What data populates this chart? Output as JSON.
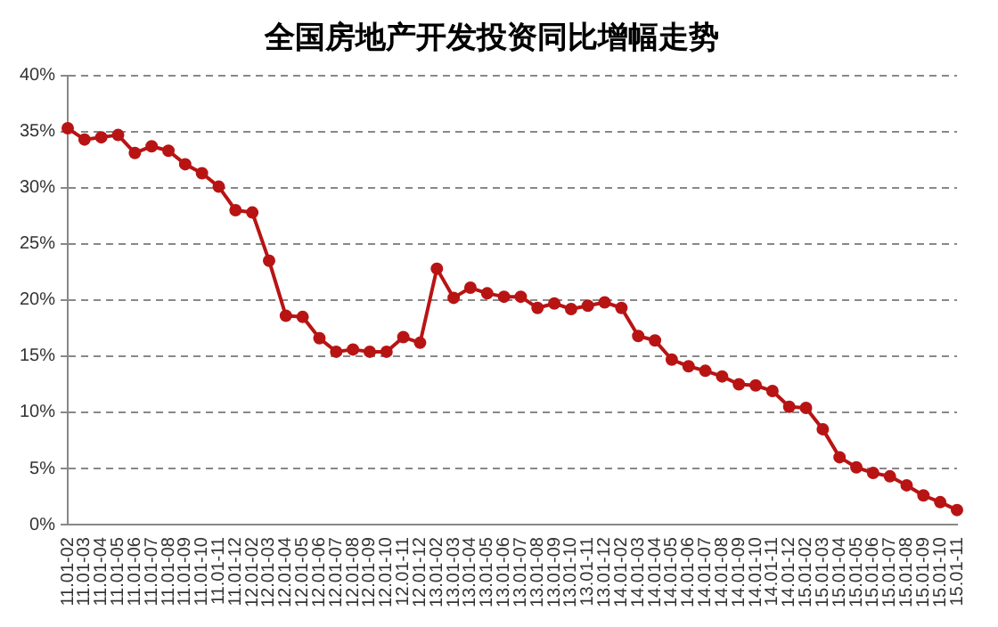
{
  "chart_data": {
    "type": "line",
    "title": "全国房地产开发投资同比增幅走势",
    "categories": [
      "11.01-02",
      "11.01-03",
      "11.01-04",
      "11.01-05",
      "11.01-06",
      "11.01-07",
      "11.01-08",
      "11.01-09",
      "11.01-10",
      "11.01-11",
      "11.01-12",
      "12.01-02",
      "12.01-03",
      "12.01-04",
      "12.01-05",
      "12.01-06",
      "12.01-07",
      "12.01-08",
      "12.01-09",
      "12.01-10",
      "12.01-11",
      "12.01-12",
      "13.01-02",
      "13.01-03",
      "13.01-04",
      "13.01-05",
      "13.01-06",
      "13.01-07",
      "13.01-08",
      "13.01-09",
      "13.01-10",
      "13.01-11",
      "13.01-12",
      "14.01-02",
      "14.01-03",
      "14.01-04",
      "14.01-05",
      "14.01-06",
      "14.01-07",
      "14.01-08",
      "14.01-09",
      "14.01-10",
      "14.01-11",
      "14.01-12",
      "15.01-02",
      "15.01-03",
      "15.01-04",
      "15.01-05",
      "15.01-06",
      "15.01-07",
      "15.01-08",
      "15.01-09",
      "15.01-10",
      "15.01-11"
    ],
    "series": [
      {
        "color": "#b81414",
        "values": [
          35.3,
          34.3,
          34.5,
          34.7,
          33.1,
          33.7,
          33.3,
          32.1,
          31.3,
          30.1,
          28.0,
          27.8,
          23.5,
          18.6,
          18.5,
          16.6,
          15.4,
          15.6,
          15.4,
          15.4,
          16.7,
          16.2,
          22.8,
          20.2,
          21.1,
          20.6,
          20.3,
          20.3,
          19.3,
          19.7,
          19.2,
          19.5,
          19.8,
          19.3,
          16.8,
          16.4,
          14.7,
          14.1,
          13.7,
          13.2,
          12.5,
          12.4,
          11.9,
          10.5,
          10.4,
          8.5,
          6.0,
          5.1,
          4.6,
          4.3,
          3.5,
          2.6,
          2.0,
          1.3
        ]
      }
    ],
    "ylim": [
      0,
      40
    ],
    "yticks": [
      {
        "value": 0,
        "label": "0%"
      },
      {
        "value": 5,
        "label": "5%"
      },
      {
        "value": 10,
        "label": "10%"
      },
      {
        "value": 15,
        "label": "15%"
      },
      {
        "value": 20,
        "label": "20%"
      },
      {
        "value": 25,
        "label": "25%"
      },
      {
        "value": 30,
        "label": "30%"
      },
      {
        "value": 35,
        "label": "35%"
      },
      {
        "value": 40,
        "label": "40%"
      }
    ],
    "grid": "y",
    "legend": false,
    "marker": "circle",
    "line_style": "solid"
  }
}
